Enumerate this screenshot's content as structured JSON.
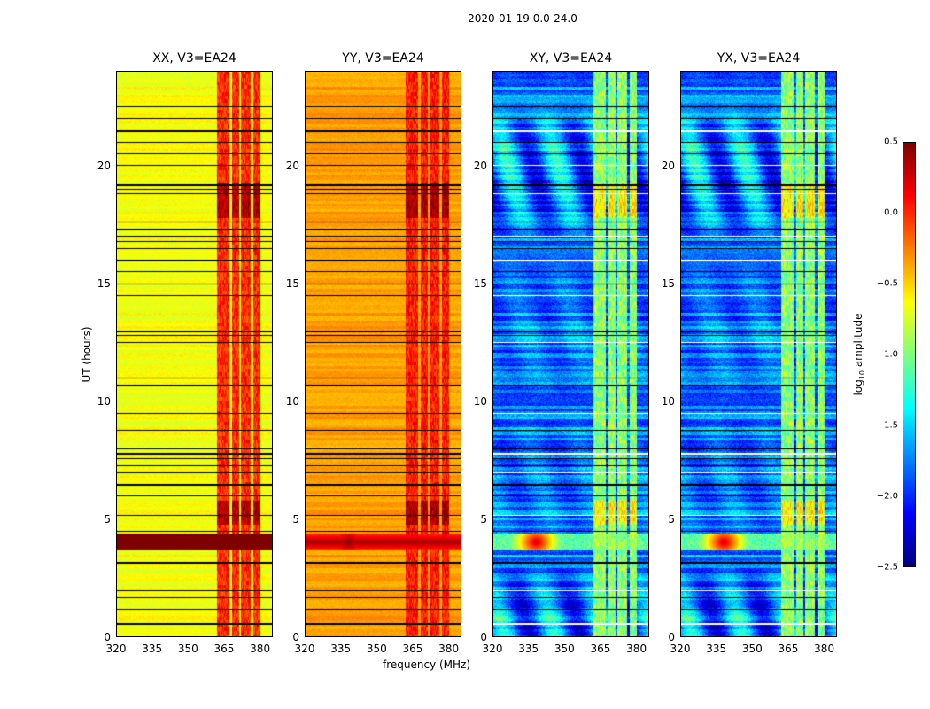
{
  "chart_data": {
    "type": "heatmap",
    "suptitle": "2020-01-19 0.0-24.0",
    "xlabel": "frequency (MHz)",
    "ylabel": "UT (hours)",
    "xlim": [
      320,
      385.3
    ],
    "ylim": [
      0,
      24
    ],
    "xticks": [
      "320",
      "335",
      "350",
      "365",
      "380"
    ],
    "yticks": [
      "0",
      "5",
      "10",
      "15",
      "20"
    ],
    "colorbar": {
      "label_main": "log",
      "label_sub": "10",
      "label_rest": " amplitude",
      "range": [
        -2.5,
        0.5
      ],
      "ticks": [
        "0.5",
        "0.0",
        "−0.5",
        "−1.0",
        "−1.5",
        "−2.0",
        "−2.5"
      ],
      "colormap": "jet"
    },
    "panels": [
      {
        "title": "XX, V3=EA24",
        "base": -0.72,
        "rfi": 0.0,
        "burst": 0.5
      },
      {
        "title": "YY, V3=EA24",
        "base": -0.42,
        "rfi": 0.05,
        "burst": 0.4
      },
      {
        "title": "XY, V3=EA24",
        "base": -2.0,
        "rfi": -0.95,
        "burst": 0.1
      },
      {
        "title": "YX, V3=EA24",
        "base": -2.0,
        "rfi": -0.95,
        "burst": 0.1
      }
    ],
    "rfi_bands_mhz": [
      [
        362,
        367
      ],
      [
        368,
        371
      ],
      [
        372,
        376
      ],
      [
        377,
        380
      ]
    ],
    "burst_hours": [
      3.7,
      4.4
    ],
    "flagged_hours": [
      0.6,
      1.2,
      1.7,
      2.0,
      3.2,
      4.5,
      5.2,
      6.0,
      6.5,
      7.0,
      7.3,
      7.6,
      7.8,
      8.0,
      8.8,
      9.5,
      10.7,
      11.0,
      12.5,
      12.8,
      13.0,
      14.5,
      15.0,
      15.5,
      16.0,
      16.5,
      16.8,
      17.0,
      17.3,
      17.6,
      18.8,
      19.0,
      19.2,
      20.0,
      20.5,
      21.0,
      21.5,
      22.0,
      22.5
    ]
  }
}
